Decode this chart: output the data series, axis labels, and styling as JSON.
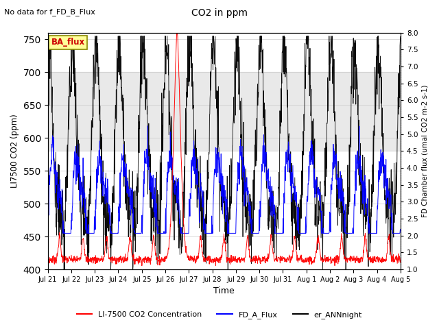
{
  "title": "CO2 in ppm",
  "subtitle": "No data for f_FD_B_Flux",
  "xlabel": "Time",
  "ylabel_left": "LI7500 CO2 (ppm)",
  "ylabel_right": "FD Chamber flux (umal CO2 m-2 s-1)",
  "ylim_left": [
    400,
    760
  ],
  "ylim_right": [
    1.0,
    8.0
  ],
  "yticks_left": [
    400,
    450,
    500,
    550,
    600,
    650,
    700,
    750
  ],
  "yticks_right": [
    1.0,
    1.5,
    2.0,
    2.5,
    3.0,
    3.5,
    4.0,
    4.5,
    5.0,
    5.5,
    6.0,
    6.5,
    7.0,
    7.5,
    8.0
  ],
  "color_red": "#ff0000",
  "color_blue": "#0000ff",
  "color_black": "#000000",
  "color_box_fill": "#ffff99",
  "color_box_edge": "#888800",
  "color_box_text": "#cc0000",
  "color_shading": "#d0d0d0",
  "legend_entries": [
    "LI-7500 CO2 Concentration",
    "FD_A_Flux",
    "er_ANNnight"
  ],
  "annotation_text": "BA_flux",
  "x_tick_labels": [
    "Jul 21",
    "Jul 22",
    "Jul 23",
    "Jul 24",
    "Jul 25",
    "Jul 26",
    "Jul 27",
    "Jul 28",
    "Jul 29",
    "Jul 30",
    "Jul 31",
    "Aug 1",
    "Aug 2",
    "Aug 3",
    "Aug 4",
    "Aug 5"
  ],
  "n_days": 15,
  "pts_per_day": 96,
  "shading_low": 580,
  "shading_high": 700
}
